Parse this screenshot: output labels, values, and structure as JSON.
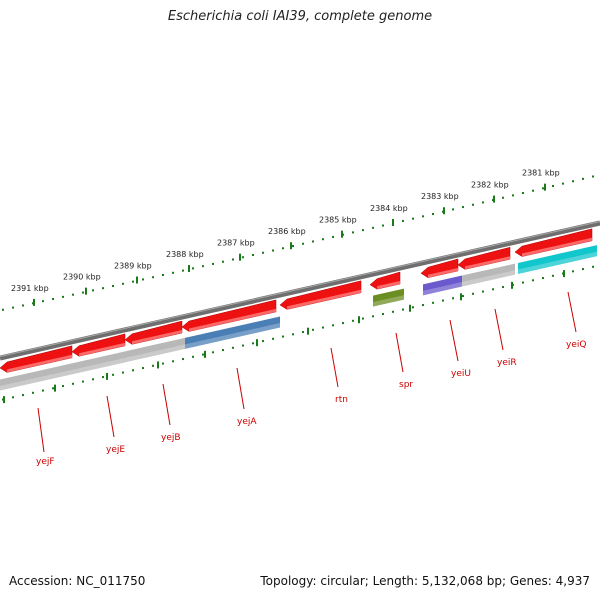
{
  "title": "Escherichia coli IAI39, complete genome",
  "accession": "Accession: NC_011750",
  "summary": "Topology: circular; Length: 5,132,068 bp; Genes: 4,937",
  "colors": {
    "backbone": "#808080",
    "scale": "#1a7a1a",
    "label": "#cc0000",
    "red": "#ee1111",
    "gray": "#b8b8b8",
    "steelblue": "#4a7fb5",
    "olive": "#6b8e23",
    "purple": "#6a5acd",
    "cyan": "#11c6cc"
  },
  "kbp_ticks": [
    "2391 kbp",
    "2390 kbp",
    "2389 kbp",
    "2388 kbp",
    "2387 kbp",
    "2386 kbp",
    "2385 kbp",
    "2384 kbp",
    "2383 kbp",
    "2382 kbp",
    "2381 kbp"
  ],
  "genes": [
    {
      "name": "yejF",
      "strand": "reverse",
      "color": "red"
    },
    {
      "name": "yejE",
      "strand": "reverse",
      "color": "red"
    },
    {
      "name": "yejB",
      "strand": "reverse",
      "color": "red"
    },
    {
      "name": "yejA",
      "strand": "reverse",
      "color": "red"
    },
    {
      "name": "rtn",
      "strand": "reverse",
      "color": "red"
    },
    {
      "name": "spr",
      "strand": "reverse",
      "color": "red"
    },
    {
      "name": "yeiU",
      "strand": "reverse",
      "color": "red"
    },
    {
      "name": "yeiR",
      "strand": "reverse",
      "color": "red"
    },
    {
      "name": "yeiQ",
      "strand": "reverse",
      "color": "red"
    }
  ],
  "features": [
    {
      "kind": "gray"
    },
    {
      "kind": "steelblue"
    },
    {
      "kind": "olive"
    },
    {
      "kind": "purple"
    },
    {
      "kind": "gray"
    },
    {
      "kind": "cyan"
    }
  ]
}
